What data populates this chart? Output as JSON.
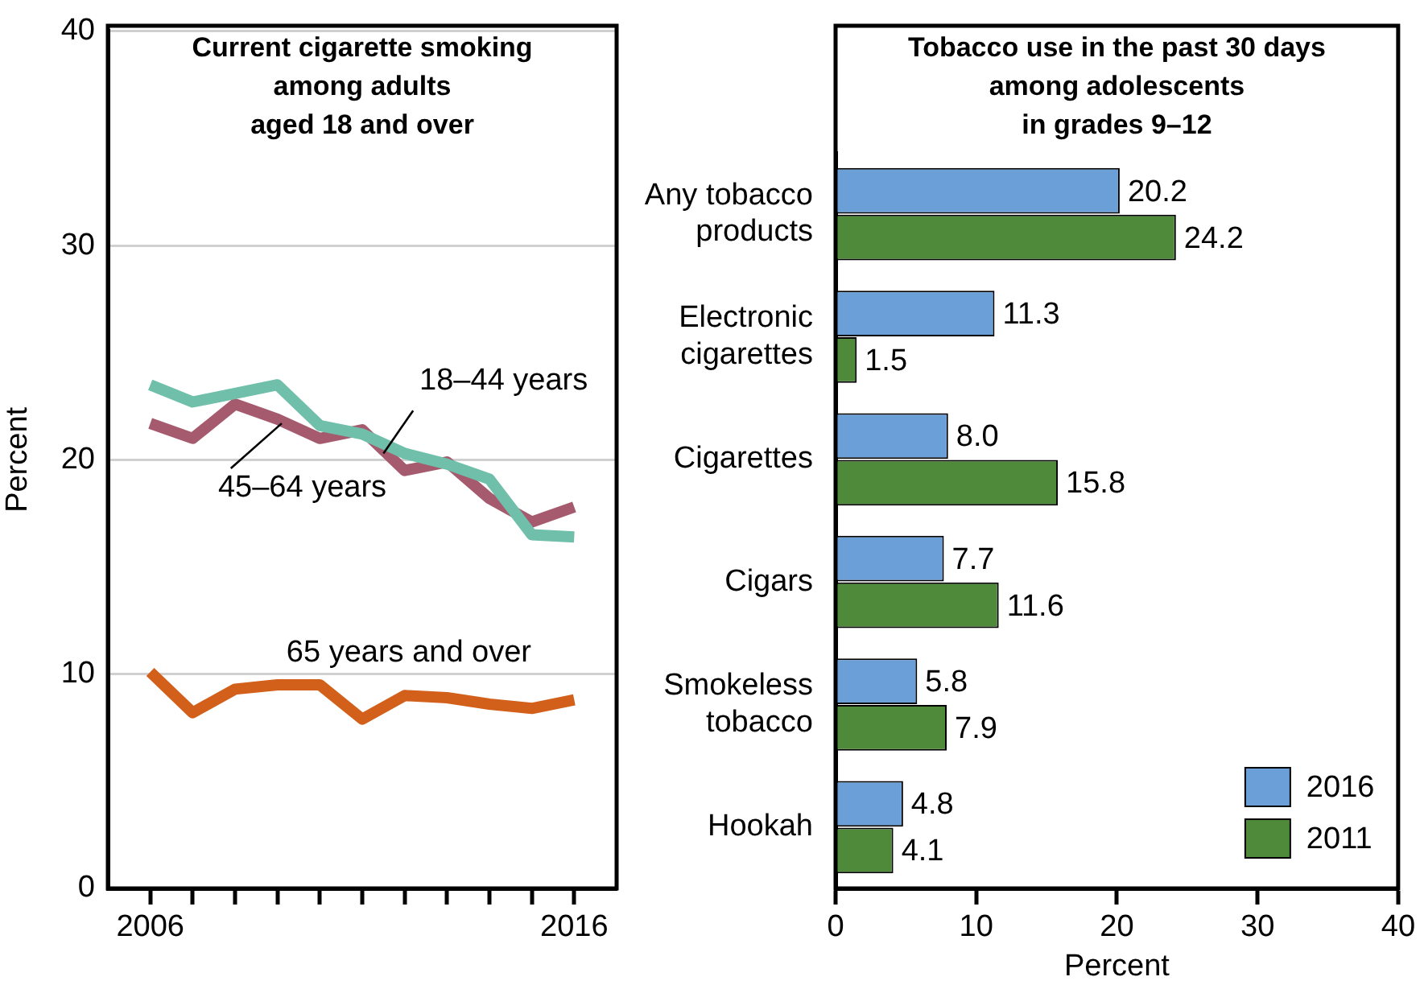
{
  "chart_data": [
    {
      "type": "line",
      "title": "Current cigarette smoking among adults aged 18 and over",
      "ylabel": "Percent",
      "x": [
        2006,
        2007,
        2008,
        2009,
        2010,
        2011,
        2012,
        2013,
        2014,
        2015,
        2016
      ],
      "xlim": [
        2005,
        2017
      ],
      "xticks": [
        2006,
        {
          "value": 2007,
          "label": null
        },
        {
          "value": 2008,
          "label": null
        },
        {
          "value": 2009,
          "label": null
        },
        {
          "value": 2010,
          "label": null
        },
        {
          "value": 2011,
          "label": null
        },
        {
          "value": 2012,
          "label": null
        },
        {
          "value": 2013,
          "label": null
        },
        {
          "value": 2014,
          "label": null
        },
        {
          "value": 2015,
          "label": null
        },
        2016
      ],
      "ylim": [
        0,
        40
      ],
      "yticks": [
        0,
        10,
        20,
        30,
        40
      ],
      "grid": "y",
      "legend": false,
      "marker": "none",
      "line_style": "solid",
      "series": [
        {
          "name": "18–44 years",
          "color": "#6fbfaa",
          "values": [
            23.5,
            22.7,
            23.1,
            23.5,
            21.6,
            21.2,
            20.3,
            19.8,
            19.1,
            16.5,
            16.4
          ]
        },
        {
          "name": "45–64 years",
          "color": "#a55a6e",
          "values": [
            21.7,
            21.0,
            22.6,
            21.9,
            21.0,
            21.4,
            19.5,
            19.9,
            18.2,
            17.1,
            17.8
          ]
        },
        {
          "name": "65 years and over",
          "color": "#d2601a",
          "values": [
            10.1,
            8.2,
            9.3,
            9.5,
            9.5,
            7.9,
            9.0,
            8.9,
            8.6,
            8.4,
            8.8
          ]
        }
      ]
    },
    {
      "type": "bar",
      "orientation": "horizontal",
      "title": "Tobacco use in the past 30 days among adolescents in grades 9–12",
      "xlabel": "Percent",
      "categories": [
        "Any tobacco products",
        "Electronic cigarettes",
        "Cigarettes",
        "Cigars",
        "Smokeless tobacco",
        "Hookah"
      ],
      "xlim": [
        0,
        40
      ],
      "xticks": [
        0,
        10,
        20,
        30,
        40
      ],
      "grid": false,
      "legend": "bottom right",
      "series": [
        {
          "name": "2016",
          "color": "#6a9fd8",
          "values": [
            20.2,
            11.3,
            8,
            7.7,
            5.8,
            4.8
          ],
          "value_labels": [
            "20.2",
            "11.3",
            "8.0",
            "7.7",
            "5.8",
            "4.8"
          ]
        },
        {
          "name": "2011",
          "color": "#4f8a3b",
          "values": [
            24.2,
            1.5,
            15.8,
            11.6,
            7.9,
            4.1
          ],
          "value_labels": [
            "24.2",
            "1.5",
            "15.8",
            "11.6",
            "7.9",
            "4.1"
          ]
        }
      ]
    }
  ]
}
